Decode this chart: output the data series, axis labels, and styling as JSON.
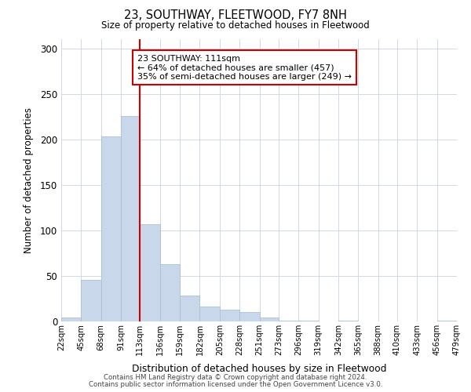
{
  "title": "23, SOUTHWAY, FLEETWOOD, FY7 8NH",
  "subtitle": "Size of property relative to detached houses in Fleetwood",
  "xlabel": "Distribution of detached houses by size in Fleetwood",
  "ylabel": "Number of detached properties",
  "bin_edges": [
    22,
    45,
    68,
    91,
    113,
    136,
    159,
    182,
    205,
    228,
    251,
    273,
    296,
    319,
    342,
    365,
    388,
    410,
    433,
    456,
    479
  ],
  "bin_heights": [
    4,
    46,
    203,
    226,
    107,
    63,
    28,
    16,
    13,
    10,
    4,
    1,
    1,
    0,
    1,
    0,
    0,
    0,
    0,
    1
  ],
  "bar_color": "#c8d8ea",
  "bar_edge_color": "#aac0d4",
  "vline_color": "#cc0000",
  "vline_x": 113,
  "annotation_text": "23 SOUTHWAY: 111sqm\n← 64% of detached houses are smaller (457)\n35% of semi-detached houses are larger (249) →",
  "annotation_box_color": "white",
  "annotation_box_edgecolor": "#cc0000",
  "ylim": [
    0,
    310
  ],
  "footnote1": "Contains HM Land Registry data © Crown copyright and database right 2024.",
  "footnote2": "Contains public sector information licensed under the Open Government Licence v3.0.",
  "bg_color": "white",
  "grid_color": "#d0d8e4",
  "tick_labels": [
    "22sqm",
    "45sqm",
    "68sqm",
    "91sqm",
    "113sqm",
    "136sqm",
    "159sqm",
    "182sqm",
    "205sqm",
    "228sqm",
    "251sqm",
    "273sqm",
    "296sqm",
    "319sqm",
    "342sqm",
    "365sqm",
    "388sqm",
    "410sqm",
    "433sqm",
    "456sqm",
    "479sqm"
  ],
  "yticks": [
    0,
    50,
    100,
    150,
    200,
    250,
    300
  ]
}
